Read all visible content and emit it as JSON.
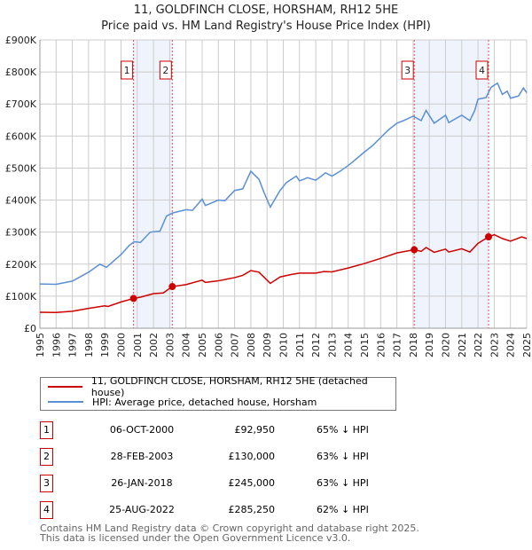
{
  "chart_data": {
    "type": "line",
    "title": "11, GOLDFINCH CLOSE, HORSHAM, RH12 5HE",
    "subtitle": "Price paid vs. HM Land Registry's House Price Index (HPI)",
    "xlim": [
      1995,
      2025
    ],
    "ylim": [
      0,
      900000
    ],
    "y_ticks": [
      {
        "v": 0,
        "label": "£0"
      },
      {
        "v": 100000,
        "label": "£100K"
      },
      {
        "v": 200000,
        "label": "£200K"
      },
      {
        "v": 300000,
        "label": "£300K"
      },
      {
        "v": 400000,
        "label": "£400K"
      },
      {
        "v": 500000,
        "label": "£500K"
      },
      {
        "v": 600000,
        "label": "£600K"
      },
      {
        "v": 700000,
        "label": "£700K"
      },
      {
        "v": 800000,
        "label": "£800K"
      },
      {
        "v": 900000,
        "label": "£900K"
      }
    ],
    "x_ticks": [
      "1995",
      "1996",
      "1997",
      "1998",
      "1999",
      "2000",
      "2001",
      "2002",
      "2003",
      "2004",
      "2005",
      "2006",
      "2007",
      "2008",
      "2009",
      "2010",
      "2011",
      "2012",
      "2013",
      "2014",
      "2015",
      "2016",
      "2017",
      "2018",
      "2019",
      "2020",
      "2021",
      "2022",
      "2023",
      "2024",
      "2025"
    ],
    "grid": true,
    "series": [
      {
        "name": "11, GOLDFINCH CLOSE, HORSHAM, RH12 5HE (detached house)",
        "color": "#cc0000",
        "x": [
          1995,
          1996,
          1997,
          1998,
          1999,
          1999.2,
          2000,
          2000.77,
          2001.2,
          2002,
          2002.6,
          2003.16,
          2004,
          2005,
          2005.2,
          2006,
          2007,
          2007.5,
          2008,
          2008.5,
          2009.2,
          2009.8,
          2010.5,
          2011,
          2012,
          2012.5,
          2013,
          2014,
          2015,
          2016,
          2017,
          2018.07,
          2018.5,
          2018.8,
          2019.3,
          2020,
          2020.2,
          2021,
          2021.5,
          2022,
          2022.65,
          2023,
          2023.5,
          2024,
          2024.7,
          2025
        ],
        "y": [
          50000,
          49000,
          53000,
          62000,
          70000,
          68000,
          82000,
          92950,
          97000,
          108000,
          110000,
          130000,
          136000,
          150000,
          143000,
          148000,
          158000,
          165000,
          180000,
          175000,
          140000,
          160000,
          168000,
          172000,
          172000,
          177000,
          176000,
          188000,
          202000,
          218000,
          235000,
          245000,
          240000,
          252000,
          237000,
          247000,
          238000,
          248000,
          238000,
          265000,
          285250,
          292000,
          280000,
          272000,
          285000,
          280000
        ]
      },
      {
        "name": "HPI: Average price, detached house, Horsham",
        "color": "#5b8fd4",
        "x": [
          1995,
          1996,
          1997,
          1998,
          1998.7,
          1999.1,
          2000,
          2000.5,
          2000.8,
          2001.2,
          2001.8,
          2002.4,
          2002.8,
          2003.2,
          2004,
          2004.4,
          2005,
          2005.2,
          2006,
          2006.4,
          2007,
          2007.5,
          2008,
          2008.5,
          2008.8,
          2009.2,
          2009.8,
          2010.2,
          2010.8,
          2011,
          2011.5,
          2012,
          2012.6,
          2013,
          2013.5,
          2014,
          2014.3,
          2015,
          2015.5,
          2016,
          2016.5,
          2017,
          2017.5,
          2018,
          2018.5,
          2018.8,
          2019.3,
          2020,
          2020.2,
          2021,
          2021.5,
          2021.8,
          2022,
          2022.5,
          2022.8,
          2023.2,
          2023.5,
          2023.8,
          2024,
          2024.5,
          2024.8,
          2025
        ],
        "y": [
          138000,
          137000,
          147000,
          175000,
          200000,
          190000,
          230000,
          258000,
          270000,
          268000,
          300000,
          303000,
          350000,
          360000,
          370000,
          368000,
          403000,
          383000,
          400000,
          398000,
          430000,
          435000,
          490000,
          465000,
          425000,
          378000,
          430000,
          455000,
          475000,
          460000,
          470000,
          462000,
          485000,
          475000,
          490000,
          508000,
          520000,
          550000,
          570000,
          595000,
          620000,
          640000,
          650000,
          662000,
          648000,
          680000,
          640000,
          665000,
          642000,
          665000,
          648000,
          680000,
          715000,
          720000,
          752000,
          765000,
          730000,
          740000,
          718000,
          725000,
          750000,
          735000
        ]
      }
    ],
    "sales": [
      {
        "n": "1",
        "x": 2000.77,
        "y": 92950,
        "date": "06-OCT-2000",
        "price": "£92,950",
        "pct": "65% ↓ HPI"
      },
      {
        "n": "2",
        "x": 2003.16,
        "y": 130000,
        "date": "28-FEB-2003",
        "price": "£130,000",
        "pct": "63% ↓ HPI"
      },
      {
        "n": "3",
        "x": 2018.07,
        "y": 245000,
        "date": "26-JAN-2018",
        "price": "£245,000",
        "pct": "63% ↓ HPI"
      },
      {
        "n": "4",
        "x": 2022.65,
        "y": 285250,
        "date": "25-AUG-2022",
        "price": "£285,250",
        "pct": "62% ↓ HPI"
      }
    ],
    "shaded_ranges": [
      [
        2000.77,
        2003.16
      ],
      [
        2018.07,
        2022.65
      ]
    ]
  },
  "legend": {
    "property": "11, GOLDFINCH CLOSE, HORSHAM, RH12 5HE (detached house)",
    "hpi": "HPI: Average price, detached house, Horsham"
  },
  "footer": {
    "line1": "Contains HM Land Registry data © Crown copyright and database right 2025.",
    "line2": "This data is licensed under the Open Government Licence v3.0."
  }
}
